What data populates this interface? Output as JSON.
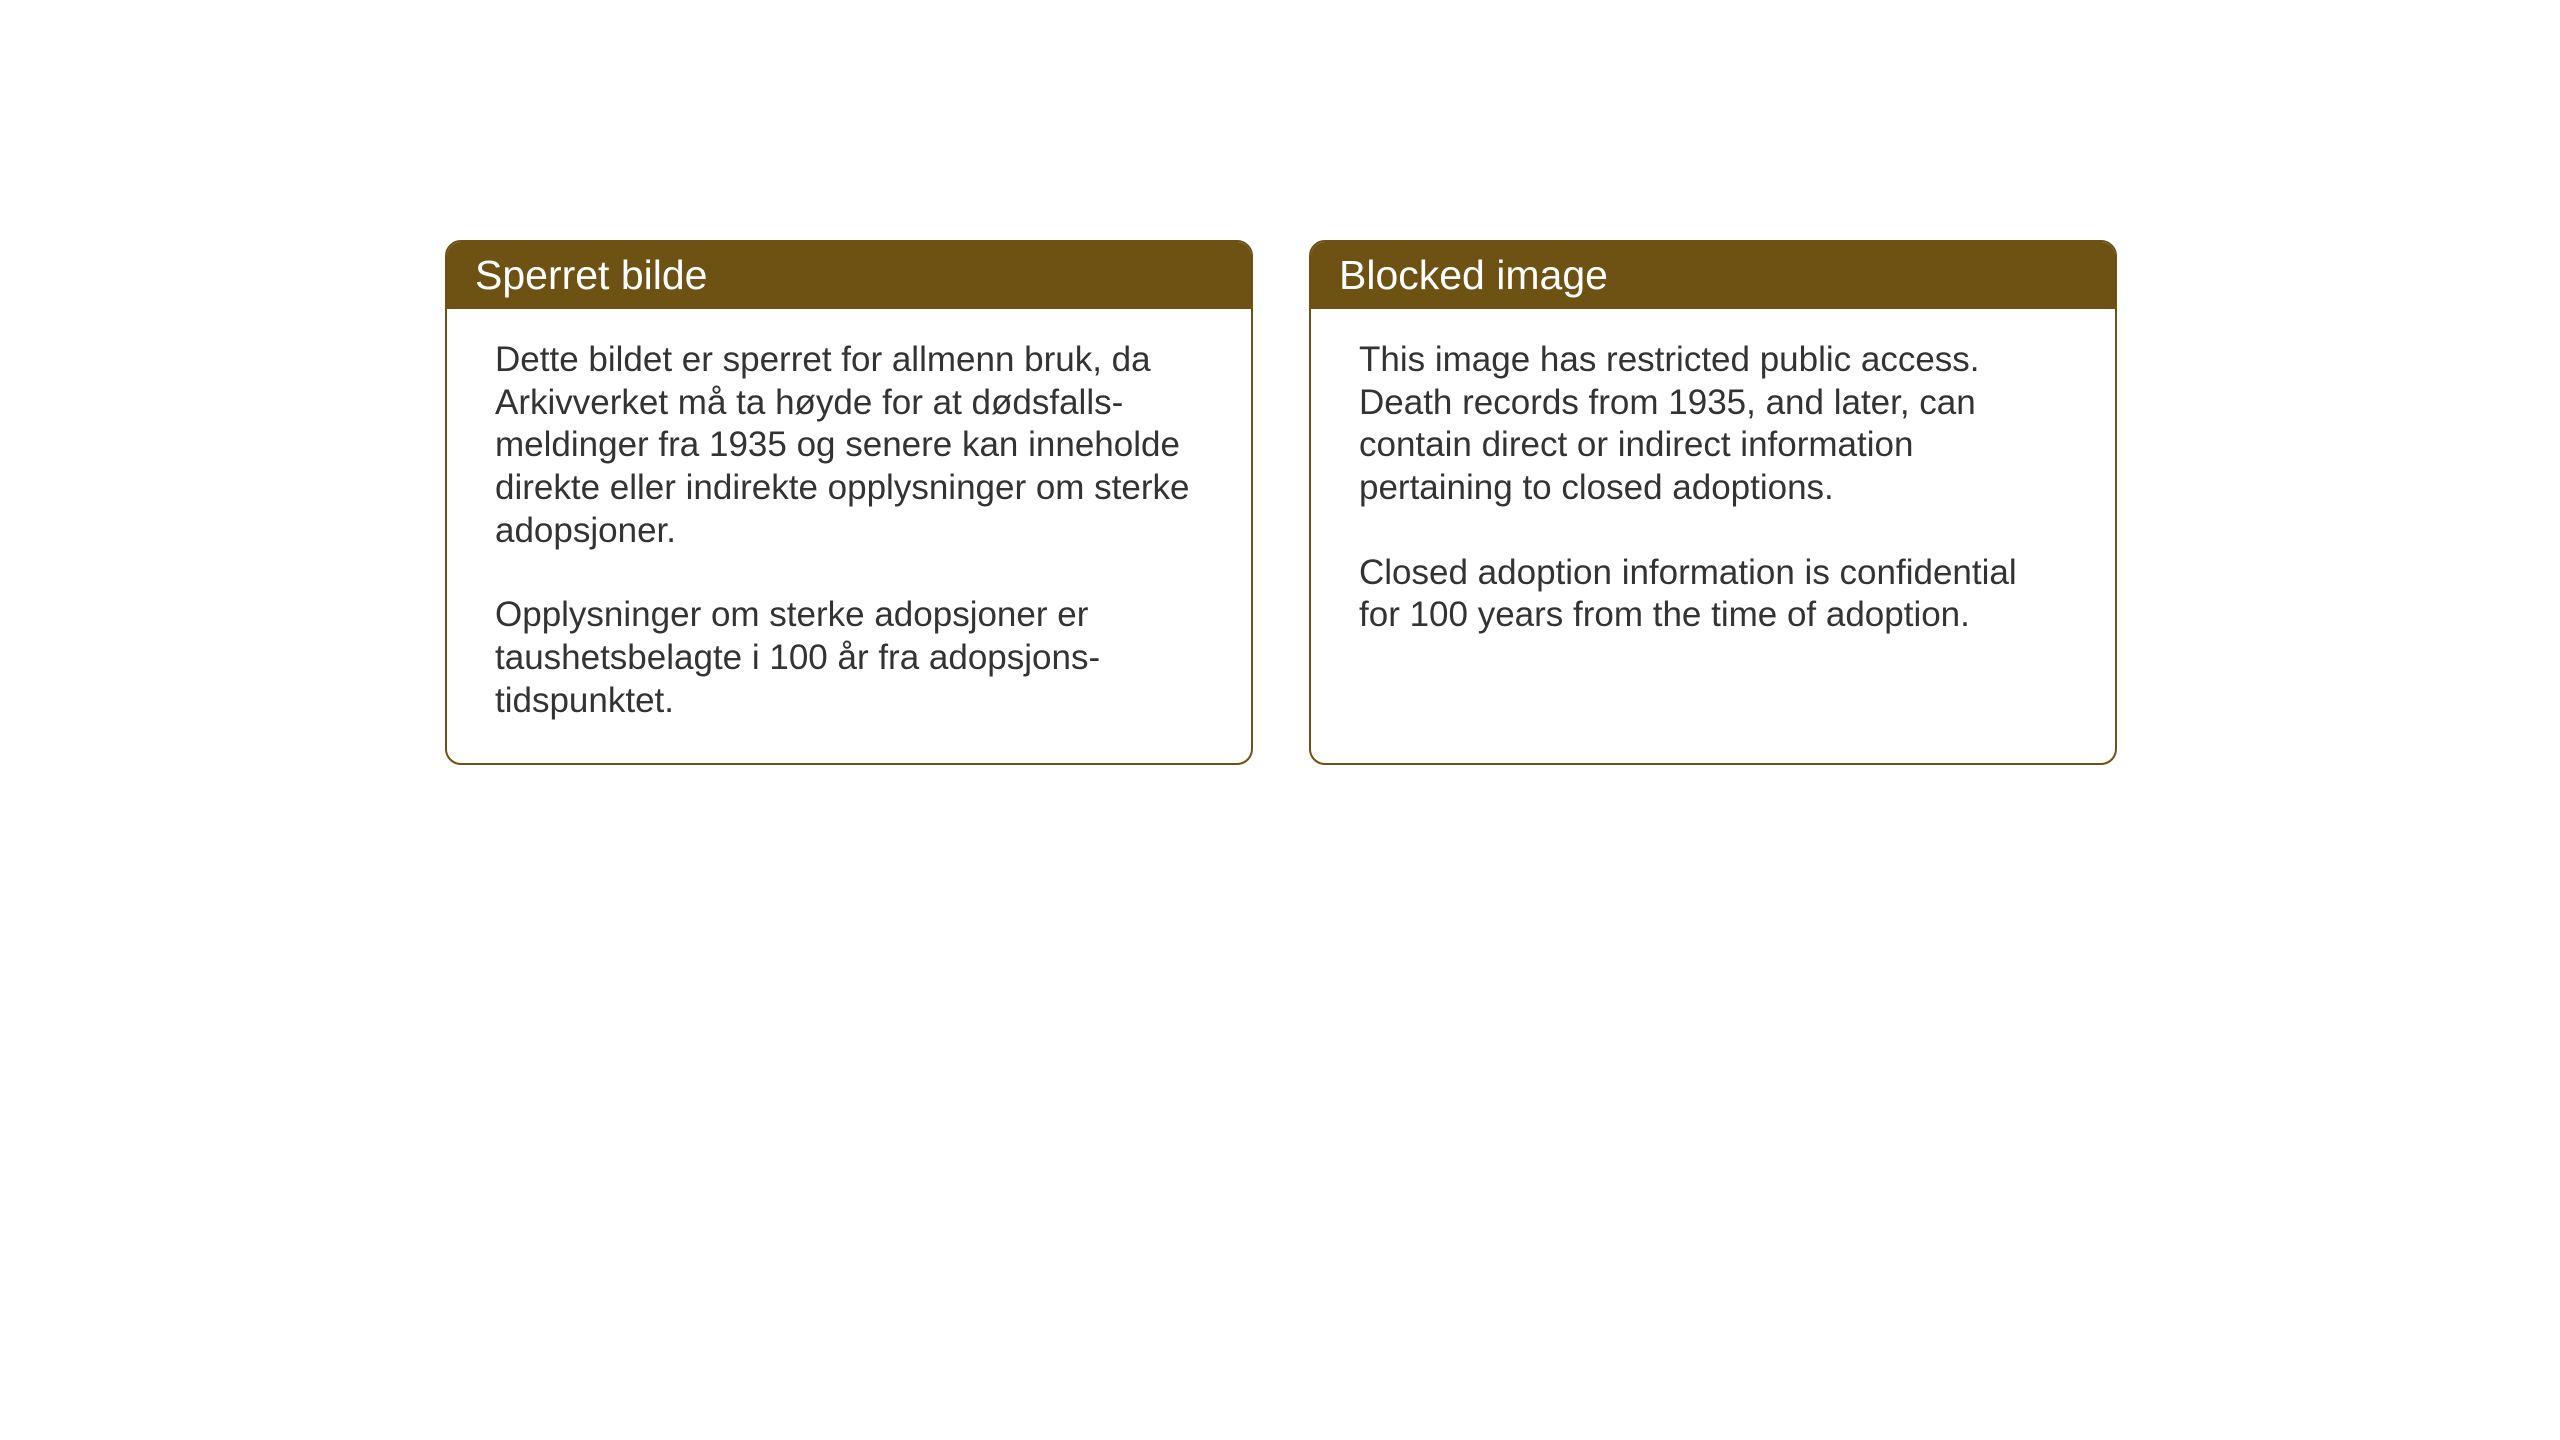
{
  "layout": {
    "background_color": "#ffffff",
    "panel_border_color": "#6e5214",
    "panel_border_radius": 16,
    "header_background_color": "#6e5214",
    "header_text_color": "#ffffff",
    "body_text_color": "#333333",
    "header_fontsize": 41,
    "body_fontsize": 35
  },
  "panels": [
    {
      "title": "Sperret bilde",
      "paragraphs": [
        "Dette bildet er sperret for allmenn bruk, da Arkivverket må ta høyde for at dødsfalls-meldinger fra 1935 og senere kan inneholde direkte eller indirekte opplysninger om sterke adopsjoner.",
        "Opplysninger om sterke adopsjoner er taushetsbelagte i 100 år fra adopsjons-tidspunktet."
      ]
    },
    {
      "title": "Blocked image",
      "paragraphs": [
        "This image has restricted public access. Death records from 1935, and later, can contain direct or indirect information pertaining to closed adoptions.",
        "Closed adoption information is confidential for 100 years from the time of adoption."
      ]
    }
  ]
}
